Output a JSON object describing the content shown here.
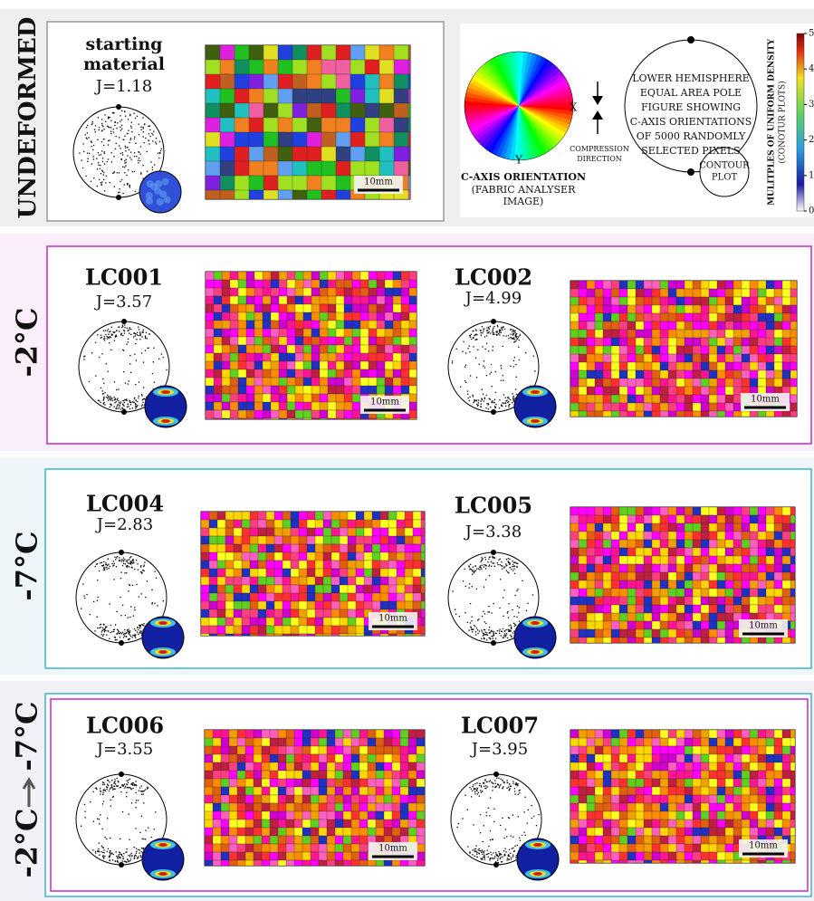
{
  "sections": [
    {
      "label": [
        "UNDEFORMED"
      ],
      "samples": [
        {
          "name": [
            "starting",
            "material"
          ],
          "j": "J=1.18",
          "scale": "10mm"
        }
      ]
    },
    {
      "label": [
        "-2°C"
      ],
      "samples": [
        {
          "name": [
            "LC001"
          ],
          "j": "J=3.57",
          "scale": "10mm"
        },
        {
          "name": [
            "LC002"
          ],
          "j": "J=4.99",
          "scale": "10mm"
        }
      ]
    },
    {
      "label": [
        "-7°C"
      ],
      "samples": [
        {
          "name": [
            "LC004"
          ],
          "j": "J=2.83",
          "scale": "10mm"
        },
        {
          "name": [
            "LC005"
          ],
          "j": "J=3.38",
          "scale": "10mm"
        }
      ]
    },
    {
      "label": [
        "-2°C",
        "-7°C"
      ],
      "samples": [
        {
          "name": [
            "LC006"
          ],
          "j": "J=3.55",
          "scale": "10mm"
        },
        {
          "name": [
            "LC007"
          ],
          "j": "J=3.95",
          "scale": "10mm"
        }
      ]
    }
  ],
  "legend": {
    "x_label": "X",
    "y_label": "Y",
    "c_axis_title": "C-AXIS ORIENTATION",
    "c_axis_sub": [
      "(FABRIC ANALYSER",
      "IMAGE)"
    ],
    "compression": [
      "COMPRESSION",
      "DIRECTION"
    ],
    "pole_figure": [
      "LOWER HEMISPHERE",
      "EQUAL AREA POLE",
      "FIGURE SHOWING",
      "C-AXIS ORIENTATIONS",
      "OF 5000 RANDOMLY",
      "SELECTED PIXELS"
    ],
    "contour": [
      "CONTOUR",
      "PLOT"
    ],
    "colorbar_title": "MULITPLES OF UNIFORM DENSITY",
    "colorbar_sub": "(CONOTUR PLOTS)",
    "colorbar_ticks": [
      0,
      1,
      2,
      3,
      4,
      5
    ]
  }
}
